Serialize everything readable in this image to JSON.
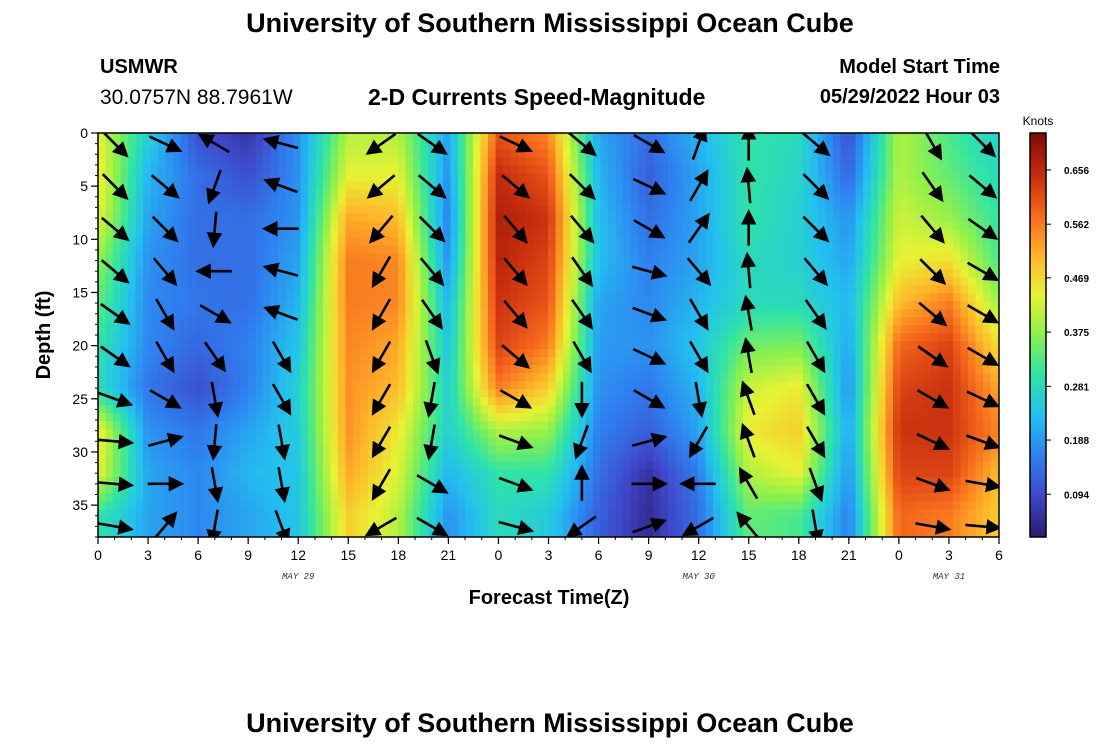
{
  "header": {
    "title": "University of Southern Mississippi Ocean Cube",
    "station": "USMWR",
    "coordinates": "30.0757N  88.7961W",
    "subtitle": "2-D Currents Speed-Magnitude",
    "model_start_label": "Model Start Time",
    "model_start_value": "05/29/2022 Hour 03"
  },
  "footer": {
    "title": "University of Southern Mississippi Ocean Cube"
  },
  "chart_data": {
    "type": "heatmap",
    "xlabel": "Forecast Time(Z)",
    "ylabel": "Depth (ft)",
    "x_ticks": [
      "0",
      "3",
      "6",
      "9",
      "12",
      "15",
      "18",
      "21",
      "0",
      "3",
      "6",
      "9",
      "12",
      "15",
      "18",
      "21",
      "0",
      "3",
      "6"
    ],
    "x_range_hours": [
      0,
      54
    ],
    "date_labels": [
      {
        "label": "MAY 29",
        "hour": 12
      },
      {
        "label": "MAY 30",
        "hour": 36
      },
      {
        "label": "MAY 31",
        "hour": 51
      }
    ],
    "y_ticks": [
      0,
      5,
      10,
      15,
      20,
      25,
      30,
      35
    ],
    "y_range": [
      0,
      38
    ],
    "y_inverted": true,
    "colorbar": {
      "title": "Knots",
      "ticks": [
        "0.094",
        "0.188",
        "0.281",
        "0.375",
        "0.469",
        "0.562",
        "0.656"
      ],
      "range": [
        0.02,
        0.72
      ],
      "colormap": [
        "#2b1a6e",
        "#3f47c9",
        "#2f7ff0",
        "#23c0ef",
        "#2fe3a8",
        "#8af04e",
        "#e8f233",
        "#ffb32a",
        "#f5661c",
        "#c42a0e",
        "#7a0d05"
      ]
    },
    "colors": {
      "arrow": "#000000",
      "axis": "#000000"
    },
    "speed_profiles": [
      {
        "hour": 0,
        "values": [
          0.44,
          0.46,
          0.44,
          0.38,
          0.34,
          0.3,
          0.28,
          0.46,
          0.44,
          0.3
        ]
      },
      {
        "hour": 3,
        "values": [
          0.26,
          0.22,
          0.2,
          0.18,
          0.17,
          0.17,
          0.15,
          0.18,
          0.2,
          0.2
        ]
      },
      {
        "hour": 6,
        "values": [
          0.1,
          0.14,
          0.14,
          0.14,
          0.15,
          0.13,
          0.1,
          0.15,
          0.17,
          0.17
        ]
      },
      {
        "hour": 9,
        "values": [
          0.06,
          0.1,
          0.14,
          0.14,
          0.14,
          0.16,
          0.16,
          0.2,
          0.22,
          0.2
        ]
      },
      {
        "hour": 12,
        "values": [
          0.18,
          0.18,
          0.18,
          0.2,
          0.22,
          0.24,
          0.26,
          0.25,
          0.24,
          0.24
        ]
      },
      {
        "hour": 15,
        "values": [
          0.4,
          0.44,
          0.52,
          0.56,
          0.56,
          0.55,
          0.54,
          0.54,
          0.52,
          0.48
        ]
      },
      {
        "hour": 18,
        "values": [
          0.4,
          0.44,
          0.5,
          0.55,
          0.55,
          0.52,
          0.5,
          0.45,
          0.43,
          0.4
        ]
      },
      {
        "hour": 21,
        "values": [
          0.2,
          0.18,
          0.16,
          0.18,
          0.22,
          0.24,
          0.26,
          0.26,
          0.22,
          0.18
        ]
      },
      {
        "hour": 24,
        "values": [
          0.6,
          0.65,
          0.67,
          0.66,
          0.64,
          0.62,
          0.56,
          0.4,
          0.3,
          0.28
        ]
      },
      {
        "hour": 27,
        "values": [
          0.55,
          0.6,
          0.64,
          0.62,
          0.6,
          0.56,
          0.48,
          0.38,
          0.3,
          0.25
        ]
      },
      {
        "hour": 30,
        "values": [
          0.2,
          0.22,
          0.23,
          0.23,
          0.2,
          0.19,
          0.18,
          0.16,
          0.14,
          0.12
        ]
      },
      {
        "hour": 33,
        "values": [
          0.14,
          0.12,
          0.14,
          0.16,
          0.17,
          0.18,
          0.15,
          0.12,
          0.06,
          0.05
        ]
      },
      {
        "hour": 36,
        "values": [
          0.22,
          0.2,
          0.2,
          0.2,
          0.22,
          0.24,
          0.22,
          0.2,
          0.16,
          0.14
        ]
      },
      {
        "hour": 39,
        "values": [
          0.3,
          0.3,
          0.3,
          0.28,
          0.28,
          0.35,
          0.42,
          0.45,
          0.4,
          0.34
        ]
      },
      {
        "hour": 42,
        "values": [
          0.28,
          0.27,
          0.26,
          0.26,
          0.28,
          0.36,
          0.45,
          0.48,
          0.44,
          0.32
        ]
      },
      {
        "hour": 45,
        "values": [
          0.1,
          0.13,
          0.18,
          0.2,
          0.22,
          0.2,
          0.18,
          0.2,
          0.18,
          0.16
        ]
      },
      {
        "hour": 48,
        "values": [
          0.4,
          0.4,
          0.42,
          0.44,
          0.5,
          0.58,
          0.62,
          0.64,
          0.62,
          0.58
        ]
      },
      {
        "hour": 51,
        "values": [
          0.32,
          0.34,
          0.38,
          0.46,
          0.56,
          0.62,
          0.64,
          0.64,
          0.62,
          0.56
        ]
      },
      {
        "hour": 54,
        "values": [
          0.26,
          0.28,
          0.3,
          0.32,
          0.38,
          0.46,
          0.52,
          0.55,
          0.5,
          0.48
        ]
      }
    ],
    "profile_depths": [
      0,
      4,
      8,
      12,
      16,
      20,
      24,
      28,
      32,
      36
    ],
    "vector_depths": [
      1,
      5,
      9,
      13,
      17,
      21,
      25,
      29,
      33,
      37
    ],
    "vector_columns": [
      {
        "hour": 1,
        "angles": [
          -45,
          -45,
          -40,
          -40,
          -35,
          -35,
          -20,
          -5,
          -5,
          -10
        ]
      },
      {
        "hour": 4,
        "angles": [
          -25,
          -40,
          -45,
          -50,
          -60,
          -60,
          -30,
          15,
          0,
          50
        ]
      },
      {
        "hour": 7,
        "angles": [
          -210,
          -110,
          -95,
          -180,
          -30,
          -55,
          -80,
          -95,
          -80,
          -100
        ]
      },
      {
        "hour": 11,
        "angles": [
          165,
          160,
          180,
          165,
          160,
          -60,
          -60,
          -80,
          -80,
          -70
        ]
      },
      {
        "hour": 17,
        "angles": [
          -145,
          -140,
          -130,
          -120,
          -120,
          -120,
          -120,
          -120,
          -120,
          -150
        ]
      },
      {
        "hour": 20,
        "angles": [
          -35,
          -40,
          -45,
          -50,
          -55,
          -70,
          -100,
          -100,
          -30,
          -30
        ]
      },
      {
        "hour": 25,
        "angles": [
          -25,
          -40,
          -50,
          -50,
          -50,
          -40,
          -30,
          -20,
          -20,
          -15
        ]
      },
      {
        "hour": 29,
        "angles": [
          -40,
          -45,
          -50,
          -55,
          -55,
          -60,
          -90,
          -110,
          90,
          -145
        ]
      },
      {
        "hour": 33,
        "angles": [
          -30,
          -25,
          -30,
          -15,
          -20,
          -25,
          -30,
          15,
          0,
          20
        ]
      },
      {
        "hour": 36,
        "angles": [
          70,
          60,
          55,
          -50,
          -60,
          -60,
          -80,
          -120,
          -180,
          -150
        ]
      },
      {
        "hour": 39,
        "angles": [
          90,
          95,
          90,
          95,
          100,
          100,
          110,
          110,
          120,
          130
        ]
      },
      {
        "hour": 43,
        "angles": [
          -40,
          -45,
          -45,
          -50,
          -55,
          -60,
          -60,
          -60,
          -70,
          -80
        ]
      },
      {
        "hour": 50,
        "angles": [
          -60,
          -55,
          -50,
          -45,
          -40,
          -35,
          -30,
          -25,
          -20,
          -10
        ]
      },
      {
        "hour": 53,
        "angles": [
          -45,
          -40,
          -35,
          -30,
          -30,
          -30,
          -25,
          -20,
          -10,
          -5
        ]
      }
    ]
  }
}
